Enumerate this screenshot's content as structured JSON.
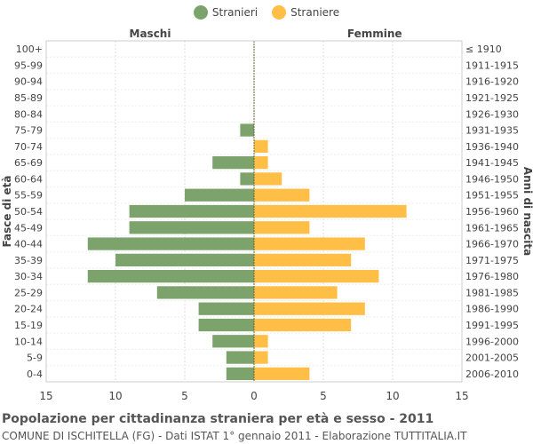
{
  "legend": {
    "items": [
      {
        "label": "Stranieri",
        "color": "#7da36d"
      },
      {
        "label": "Straniere",
        "color": "#ffbf47"
      }
    ]
  },
  "captions": {
    "title": "Popolazione per cittadinanza straniera per età e sesso - 2011",
    "subtitle": "COMUNE DI ISCHITELLA (FG) - Dati ISTAT 1° gennaio 2011 - Elaborazione TUTTITALIA.IT"
  },
  "chart_data": {
    "type": "bar",
    "orientation": "horizontal-population-pyramid",
    "left_header": "Maschi",
    "right_header": "Femmine",
    "ylabel_left": "Fasce di età",
    "ylabel_right": "Anni di nascita",
    "xlim": [
      -15,
      15
    ],
    "x_ticks": [
      15,
      10,
      5,
      0,
      5,
      10,
      15
    ],
    "grid": true,
    "legend_position": "top-center",
    "categories": [
      "100+",
      "95-99",
      "90-94",
      "85-89",
      "80-84",
      "75-79",
      "70-74",
      "65-69",
      "60-64",
      "55-59",
      "50-54",
      "45-49",
      "40-44",
      "35-39",
      "30-34",
      "25-29",
      "20-24",
      "15-19",
      "10-14",
      "5-9",
      "0-4"
    ],
    "birth_years": [
      "≤ 1910",
      "1911-1915",
      "1916-1920",
      "1921-1925",
      "1926-1930",
      "1931-1935",
      "1936-1940",
      "1941-1945",
      "1946-1950",
      "1951-1955",
      "1956-1960",
      "1961-1965",
      "1966-1970",
      "1971-1975",
      "1976-1980",
      "1981-1985",
      "1986-1990",
      "1991-1995",
      "1996-2000",
      "2001-2005",
      "2006-2010"
    ],
    "series": [
      {
        "name": "Stranieri",
        "color": "#7da36d",
        "values": [
          0,
          0,
          0,
          0,
          0,
          1,
          0,
          3,
          1,
          5,
          9,
          9,
          12,
          10,
          12,
          7,
          4,
          4,
          3,
          2,
          2
        ]
      },
      {
        "name": "Straniere",
        "color": "#ffbf47",
        "values": [
          0,
          0,
          0,
          0,
          0,
          0,
          1,
          1,
          2,
          4,
          11,
          4,
          8,
          7,
          9,
          6,
          8,
          7,
          1,
          1,
          4
        ]
      }
    ]
  }
}
